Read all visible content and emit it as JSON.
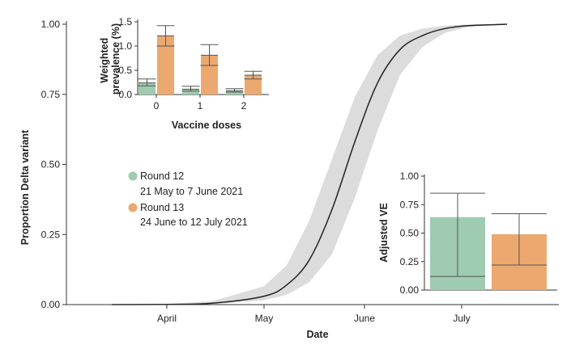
{
  "chart_data": [
    {
      "type": "line",
      "xlabel": "Date",
      "ylabel": "Proportion Delta variant",
      "x_ticks": [
        "April",
        "May",
        "June",
        "July"
      ],
      "y_ticks": [
        "0.00",
        "0.25",
        "0.50",
        "0.75",
        "1.00"
      ],
      "ylim": [
        0,
        1
      ],
      "xlim": [
        "2021-03-01",
        "2021-07-31"
      ],
      "series": [
        {
          "kind": "fitted-logistic-with-band",
          "x": [
            "2021-03-15",
            "2021-04-01",
            "2021-04-15",
            "2021-05-01",
            "2021-05-08",
            "2021-05-15",
            "2021-05-22",
            "2021-05-29",
            "2021-06-05",
            "2021-06-12",
            "2021-06-19",
            "2021-06-26",
            "2021-07-03",
            "2021-07-15"
          ],
          "y": [
            0.0,
            0.001,
            0.005,
            0.03,
            0.07,
            0.16,
            0.34,
            0.58,
            0.79,
            0.91,
            0.96,
            0.985,
            0.995,
            1.0
          ],
          "lower": [
            0.0,
            0.0005,
            0.002,
            0.015,
            0.035,
            0.08,
            0.18,
            0.38,
            0.62,
            0.82,
            0.92,
            0.97,
            0.99,
            1.0
          ],
          "upper": [
            0.0,
            0.003,
            0.012,
            0.065,
            0.14,
            0.3,
            0.52,
            0.74,
            0.89,
            0.96,
            0.985,
            0.995,
            0.999,
            1.0
          ],
          "line_color": "#222222",
          "band_color": "#dcdcdc"
        }
      ],
      "legend": [
        {
          "label": "Round 12",
          "detail": "21 May to 7 June 2021",
          "color": "#9fcbb0"
        },
        {
          "label": "Round 13",
          "detail": "24 June to 12 July 2021",
          "color": "#eba970"
        }
      ]
    },
    {
      "type": "bar",
      "xlabel": "Vaccine doses",
      "ylabel": "Weighted prevalence (%)",
      "categories": [
        "0",
        "1",
        "2"
      ],
      "ylim": [
        0,
        1.5
      ],
      "y_ticks": [
        "0.0",
        "0.5",
        "1.0",
        "1.5"
      ],
      "series": [
        {
          "name": "Round 12",
          "color": "#9fcbb0",
          "values": [
            0.24,
            0.11,
            0.08
          ],
          "ci_low": [
            0.18,
            0.07,
            0.05
          ],
          "ci_high": [
            0.32,
            0.17,
            0.12
          ]
        },
        {
          "name": "Round 13",
          "color": "#eba970",
          "values": [
            1.21,
            0.81,
            0.4
          ],
          "ci_low": [
            1.0,
            0.6,
            0.32
          ],
          "ci_high": [
            1.42,
            1.03,
            0.48
          ]
        }
      ]
    },
    {
      "type": "bar",
      "xlabel": "",
      "ylabel": "Adjusted VE",
      "categories": [
        "Round 12",
        "Round 13"
      ],
      "ylim": [
        0,
        1
      ],
      "y_ticks": [
        "0.00",
        "0.25",
        "0.50",
        "0.75",
        "1.00"
      ],
      "series": [
        {
          "name": "",
          "values": [
            0.64,
            0.49
          ],
          "ci_low": [
            0.12,
            0.22
          ],
          "ci_high": [
            0.85,
            0.67
          ],
          "colors": [
            "#9fcbb0",
            "#eba970"
          ]
        }
      ]
    }
  ]
}
